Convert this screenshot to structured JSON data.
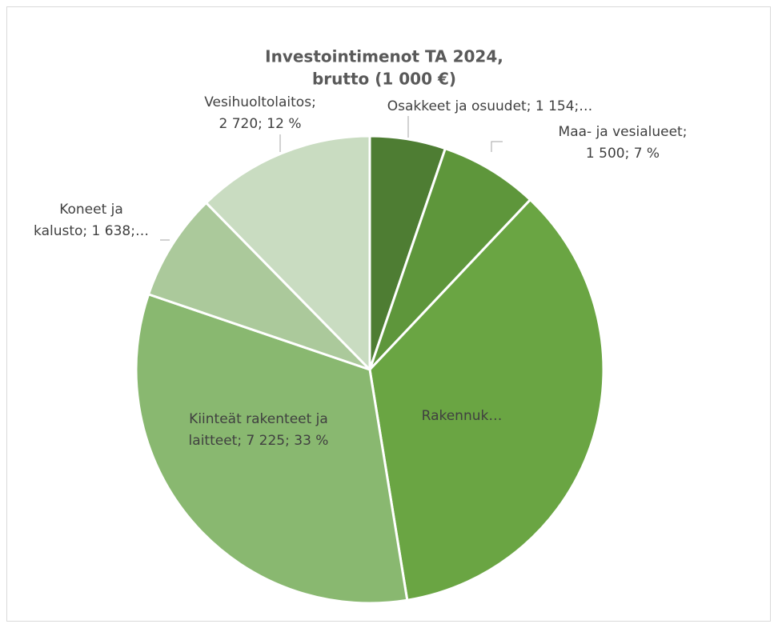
{
  "chart_data": {
    "type": "pie",
    "title": [
      "Investointimenot TA 2024,",
      "brutto (1 000 €)"
    ],
    "values": [
      1154,
      1500,
      7800,
      7225,
      1638,
      2720
    ],
    "value_labels": [
      [
        "Osakkeet ja osuudet; 1 154;…"
      ],
      [
        "Maa- ja vesialueet;",
        "1 500; 7 %"
      ],
      [
        "Rakennuk…"
      ],
      [
        "Kiinteät rakenteet ja",
        "laitteet; 7 225; 33 %"
      ],
      [
        "Koneet ja",
        "kalusto; 1 638;…"
      ],
      [
        "Vesihuoltolaitos;",
        "2 720; 12 %"
      ]
    ],
    "colors": [
      "#4e7d33",
      "#5e963b",
      "#6aa543",
      "#89b870",
      "#abc99b",
      "#c9dcc1"
    ]
  }
}
